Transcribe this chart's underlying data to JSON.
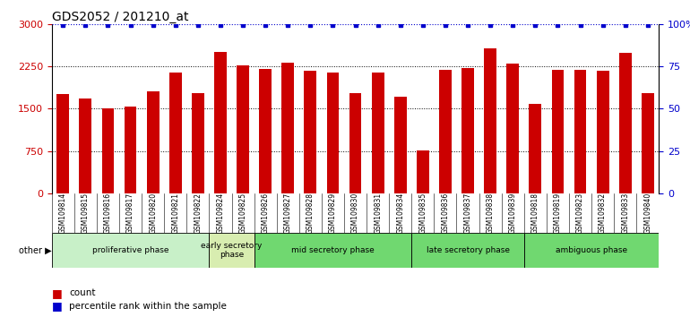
{
  "title": "GDS2052 / 201210_at",
  "samples": [
    "GSM109814",
    "GSM109815",
    "GSM109816",
    "GSM109817",
    "GSM109820",
    "GSM109821",
    "GSM109822",
    "GSM109824",
    "GSM109825",
    "GSM109826",
    "GSM109827",
    "GSM109828",
    "GSM109829",
    "GSM109830",
    "GSM109831",
    "GSM109834",
    "GSM109835",
    "GSM109836",
    "GSM109837",
    "GSM109838",
    "GSM109839",
    "GSM109818",
    "GSM109819",
    "GSM109823",
    "GSM109832",
    "GSM109833",
    "GSM109840"
  ],
  "counts": [
    1750,
    1680,
    1500,
    1540,
    1800,
    2130,
    1780,
    2500,
    2270,
    2200,
    2310,
    2170,
    2140,
    1780,
    2140,
    1710,
    760,
    2190,
    2210,
    2560,
    2300,
    1590,
    2190,
    2190,
    2170,
    2490,
    1780
  ],
  "percentile_ranks": [
    99,
    99,
    99,
    99,
    99,
    99,
    99,
    99,
    99,
    99,
    99,
    99,
    99,
    99,
    99,
    99,
    99,
    99,
    99,
    99,
    99,
    99,
    99,
    99,
    99,
    99,
    99
  ],
  "phases": [
    {
      "label": "proliferative phase",
      "start": 0,
      "end": 7,
      "color": "#c8f0c8"
    },
    {
      "label": "early secretory\nphase",
      "start": 7,
      "end": 9,
      "color": "#d8edb0"
    },
    {
      "label": "mid secretory phase",
      "start": 9,
      "end": 16,
      "color": "#70d870"
    },
    {
      "label": "late secretory phase",
      "start": 16,
      "end": 21,
      "color": "#70d870"
    },
    {
      "label": "ambiguous phase",
      "start": 21,
      "end": 27,
      "color": "#70d870"
    }
  ],
  "bar_color": "#cc0000",
  "dot_color": "#0000cc",
  "ylim_left": [
    0,
    3000
  ],
  "ylim_right": [
    0,
    100
  ],
  "yticks_left": [
    0,
    750,
    1500,
    2250,
    3000
  ],
  "yticks_right": [
    0,
    25,
    50,
    75,
    100
  ],
  "right_tick_labels": [
    "0",
    "25",
    "50",
    "75",
    "100%"
  ],
  "tick_area_color": "#d0d0d0",
  "legend_count_label": "count",
  "legend_pct_label": "percentile rank within the sample",
  "fig_width": 7.7,
  "fig_height": 3.54,
  "dpi": 100
}
